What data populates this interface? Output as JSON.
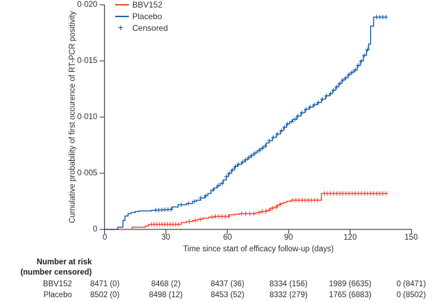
{
  "colors": {
    "axis": "#454545",
    "text": "#2e2e2e"
  },
  "chart_data": {
    "type": "line",
    "subtype": "kaplan-meier-step",
    "title": "",
    "xlabel": "Time since start of efficacy follow-up (days)",
    "ylabel": "Cumulative probability of first occurence of RT-PCR positivity",
    "xlim": [
      0,
      150
    ],
    "ylim": [
      0,
      0.02
    ],
    "x_ticks": [
      0,
      30,
      60,
      90,
      120,
      150
    ],
    "x_tick_labels": [
      "0",
      "30",
      "60",
      "90",
      "120",
      "150"
    ],
    "y_ticks": [
      0,
      0.005,
      0.01,
      0.015,
      0.02
    ],
    "y_tick_labels": [
      "0",
      "0·005",
      "0·010",
      "0·015",
      "0·020"
    ],
    "grid": false,
    "legend_position": "top-left-inside",
    "censored_marker": "+",
    "legend": [
      {
        "label": "BBV152",
        "type": "line",
        "color": "#ee4636"
      },
      {
        "label": "Placebo",
        "type": "line",
        "color": "#1d61ab"
      },
      {
        "label": "Censored",
        "type": "plus",
        "color": "#3a3a3a"
      }
    ],
    "series": [
      {
        "name": "BBV152",
        "color": "#ee4636",
        "steps": [
          [
            0,
            0
          ],
          [
            13.5,
            0.0002
          ],
          [
            20,
            0.0003
          ],
          [
            21.5,
            0.00045
          ],
          [
            37.5,
            0.0006
          ],
          [
            40,
            0.0007
          ],
          [
            43,
            0.0008
          ],
          [
            45.5,
            0.0009
          ],
          [
            48,
            0.001
          ],
          [
            51,
            0.0011
          ],
          [
            54,
            0.00116
          ],
          [
            61,
            0.0013
          ],
          [
            63.5,
            0.00135
          ],
          [
            66,
            0.0014
          ],
          [
            74,
            0.0015
          ],
          [
            76.5,
            0.0016
          ],
          [
            79,
            0.0017
          ],
          [
            81,
            0.0019
          ],
          [
            83,
            0.002
          ],
          [
            84.5,
            0.0022
          ],
          [
            86,
            0.0023
          ],
          [
            87.5,
            0.0024
          ],
          [
            89,
            0.0025
          ],
          [
            91,
            0.0026
          ],
          [
            106,
            0.0032
          ],
          [
            138,
            0.0032
          ]
        ],
        "censor_days": [
          23,
          24.3,
          25.6,
          26.9,
          28.2,
          29.5,
          30.8,
          32.1,
          33.4,
          34.7,
          36,
          41.5,
          44.3,
          46.8,
          52.5,
          54.2,
          55.8,
          57.4,
          59,
          60.5,
          67,
          69,
          71,
          73,
          75.5,
          77.2,
          78.8,
          80.5,
          82,
          84,
          85.7,
          92,
          93.5,
          95,
          96.5,
          98,
          99.5,
          101,
          102.5,
          104,
          107.5,
          109,
          110.5,
          112,
          113.5,
          115,
          116.5,
          118,
          119.5,
          121,
          122.5,
          124,
          125.5,
          127,
          128.5,
          130,
          131.5,
          133,
          134.5,
          136,
          137.5
        ]
      },
      {
        "name": "Placebo",
        "color": "#1d61ab",
        "steps": [
          [
            0,
            0
          ],
          [
            6.5,
            0.0002
          ],
          [
            9,
            0.0008
          ],
          [
            10,
            0.0012
          ],
          [
            11.5,
            0.0014
          ],
          [
            13,
            0.0015
          ],
          [
            15,
            0.0016
          ],
          [
            17,
            0.00165
          ],
          [
            23,
            0.0017
          ],
          [
            25,
            0.00172
          ],
          [
            27,
            0.00174
          ],
          [
            29,
            0.00176
          ],
          [
            31,
            0.00178
          ],
          [
            33,
            0.002
          ],
          [
            36,
            0.0022
          ],
          [
            40,
            0.0023
          ],
          [
            43,
            0.0025
          ],
          [
            45,
            0.0026
          ],
          [
            47,
            0.0028
          ],
          [
            49,
            0.003
          ],
          [
            50.5,
            0.0032
          ],
          [
            52,
            0.0035
          ],
          [
            53.5,
            0.0037
          ],
          [
            55,
            0.0039
          ],
          [
            56.5,
            0.0041
          ],
          [
            58,
            0.0044
          ],
          [
            59.5,
            0.0047
          ],
          [
            60.5,
            0.005
          ],
          [
            62,
            0.0053
          ],
          [
            63.5,
            0.0056
          ],
          [
            65,
            0.0058
          ],
          [
            67,
            0.006
          ],
          [
            68.5,
            0.0062
          ],
          [
            70,
            0.0064
          ],
          [
            71.5,
            0.0066
          ],
          [
            73,
            0.0068
          ],
          [
            74.5,
            0.007
          ],
          [
            76,
            0.0072
          ],
          [
            77.5,
            0.0074
          ],
          [
            79,
            0.0077
          ],
          [
            80.5,
            0.0079
          ],
          [
            82,
            0.0082
          ],
          [
            84,
            0.0085
          ],
          [
            86,
            0.0088
          ],
          [
            87.5,
            0.0091
          ],
          [
            89,
            0.0094
          ],
          [
            90.5,
            0.0096
          ],
          [
            92,
            0.0098
          ],
          [
            94,
            0.0101
          ],
          [
            96,
            0.0104
          ],
          [
            98,
            0.0107
          ],
          [
            100,
            0.0109
          ],
          [
            102,
            0.0111
          ],
          [
            104,
            0.0113
          ],
          [
            106,
            0.0116
          ],
          [
            108,
            0.0119
          ],
          [
            110,
            0.0121
          ],
          [
            111.5,
            0.0124
          ],
          [
            113,
            0.0127
          ],
          [
            114.5,
            0.013
          ],
          [
            116,
            0.0133
          ],
          [
            117.5,
            0.0135
          ],
          [
            119,
            0.0138
          ],
          [
            120.5,
            0.014
          ],
          [
            122,
            0.0142
          ],
          [
            123.5,
            0.0146
          ],
          [
            125,
            0.015
          ],
          [
            126.5,
            0.0155
          ],
          [
            128,
            0.016
          ],
          [
            129,
            0.0165
          ],
          [
            130,
            0.0181
          ],
          [
            131.5,
            0.0189
          ],
          [
            138,
            0.0189
          ]
        ],
        "censor_days": [
          25,
          26.5,
          28,
          29.5,
          31,
          32.5,
          37.5,
          41,
          44,
          47,
          49.5,
          53,
          55.5,
          57.5,
          59.5,
          61,
          62.5,
          64,
          65.5,
          67.5,
          69,
          70.5,
          72,
          73.5,
          75.5,
          77,
          78.5,
          80.5,
          82.5,
          84.5,
          86.5,
          88,
          89.5,
          91.5,
          93,
          94.5,
          96.5,
          98.5,
          100.5,
          102.5,
          104.5,
          106.5,
          108.5,
          110.5,
          112,
          113.5,
          115,
          116.5,
          118,
          119.5,
          121,
          122.5,
          124,
          125.5,
          127,
          128.5,
          133,
          134.5,
          136,
          137.5
        ]
      }
    ],
    "number_at_risk": {
      "header_line1": "Number at risk",
      "header_line2": "(number censored)",
      "columns": [
        0,
        30,
        60,
        90,
        120,
        150
      ],
      "rows": [
        {
          "label": "BBV152",
          "values": [
            "8471 (0)",
            "8468 (2)",
            "8437 (36)",
            "8334 (156)",
            "1989 (6635)",
            "0 (8471)"
          ]
        },
        {
          "label": "Placebo",
          "values": [
            "8502 (0)",
            "8498 (12)",
            "8453 (52)",
            "8332 (279)",
            "1765 (6883)",
            "0 (8502)"
          ]
        }
      ]
    }
  }
}
